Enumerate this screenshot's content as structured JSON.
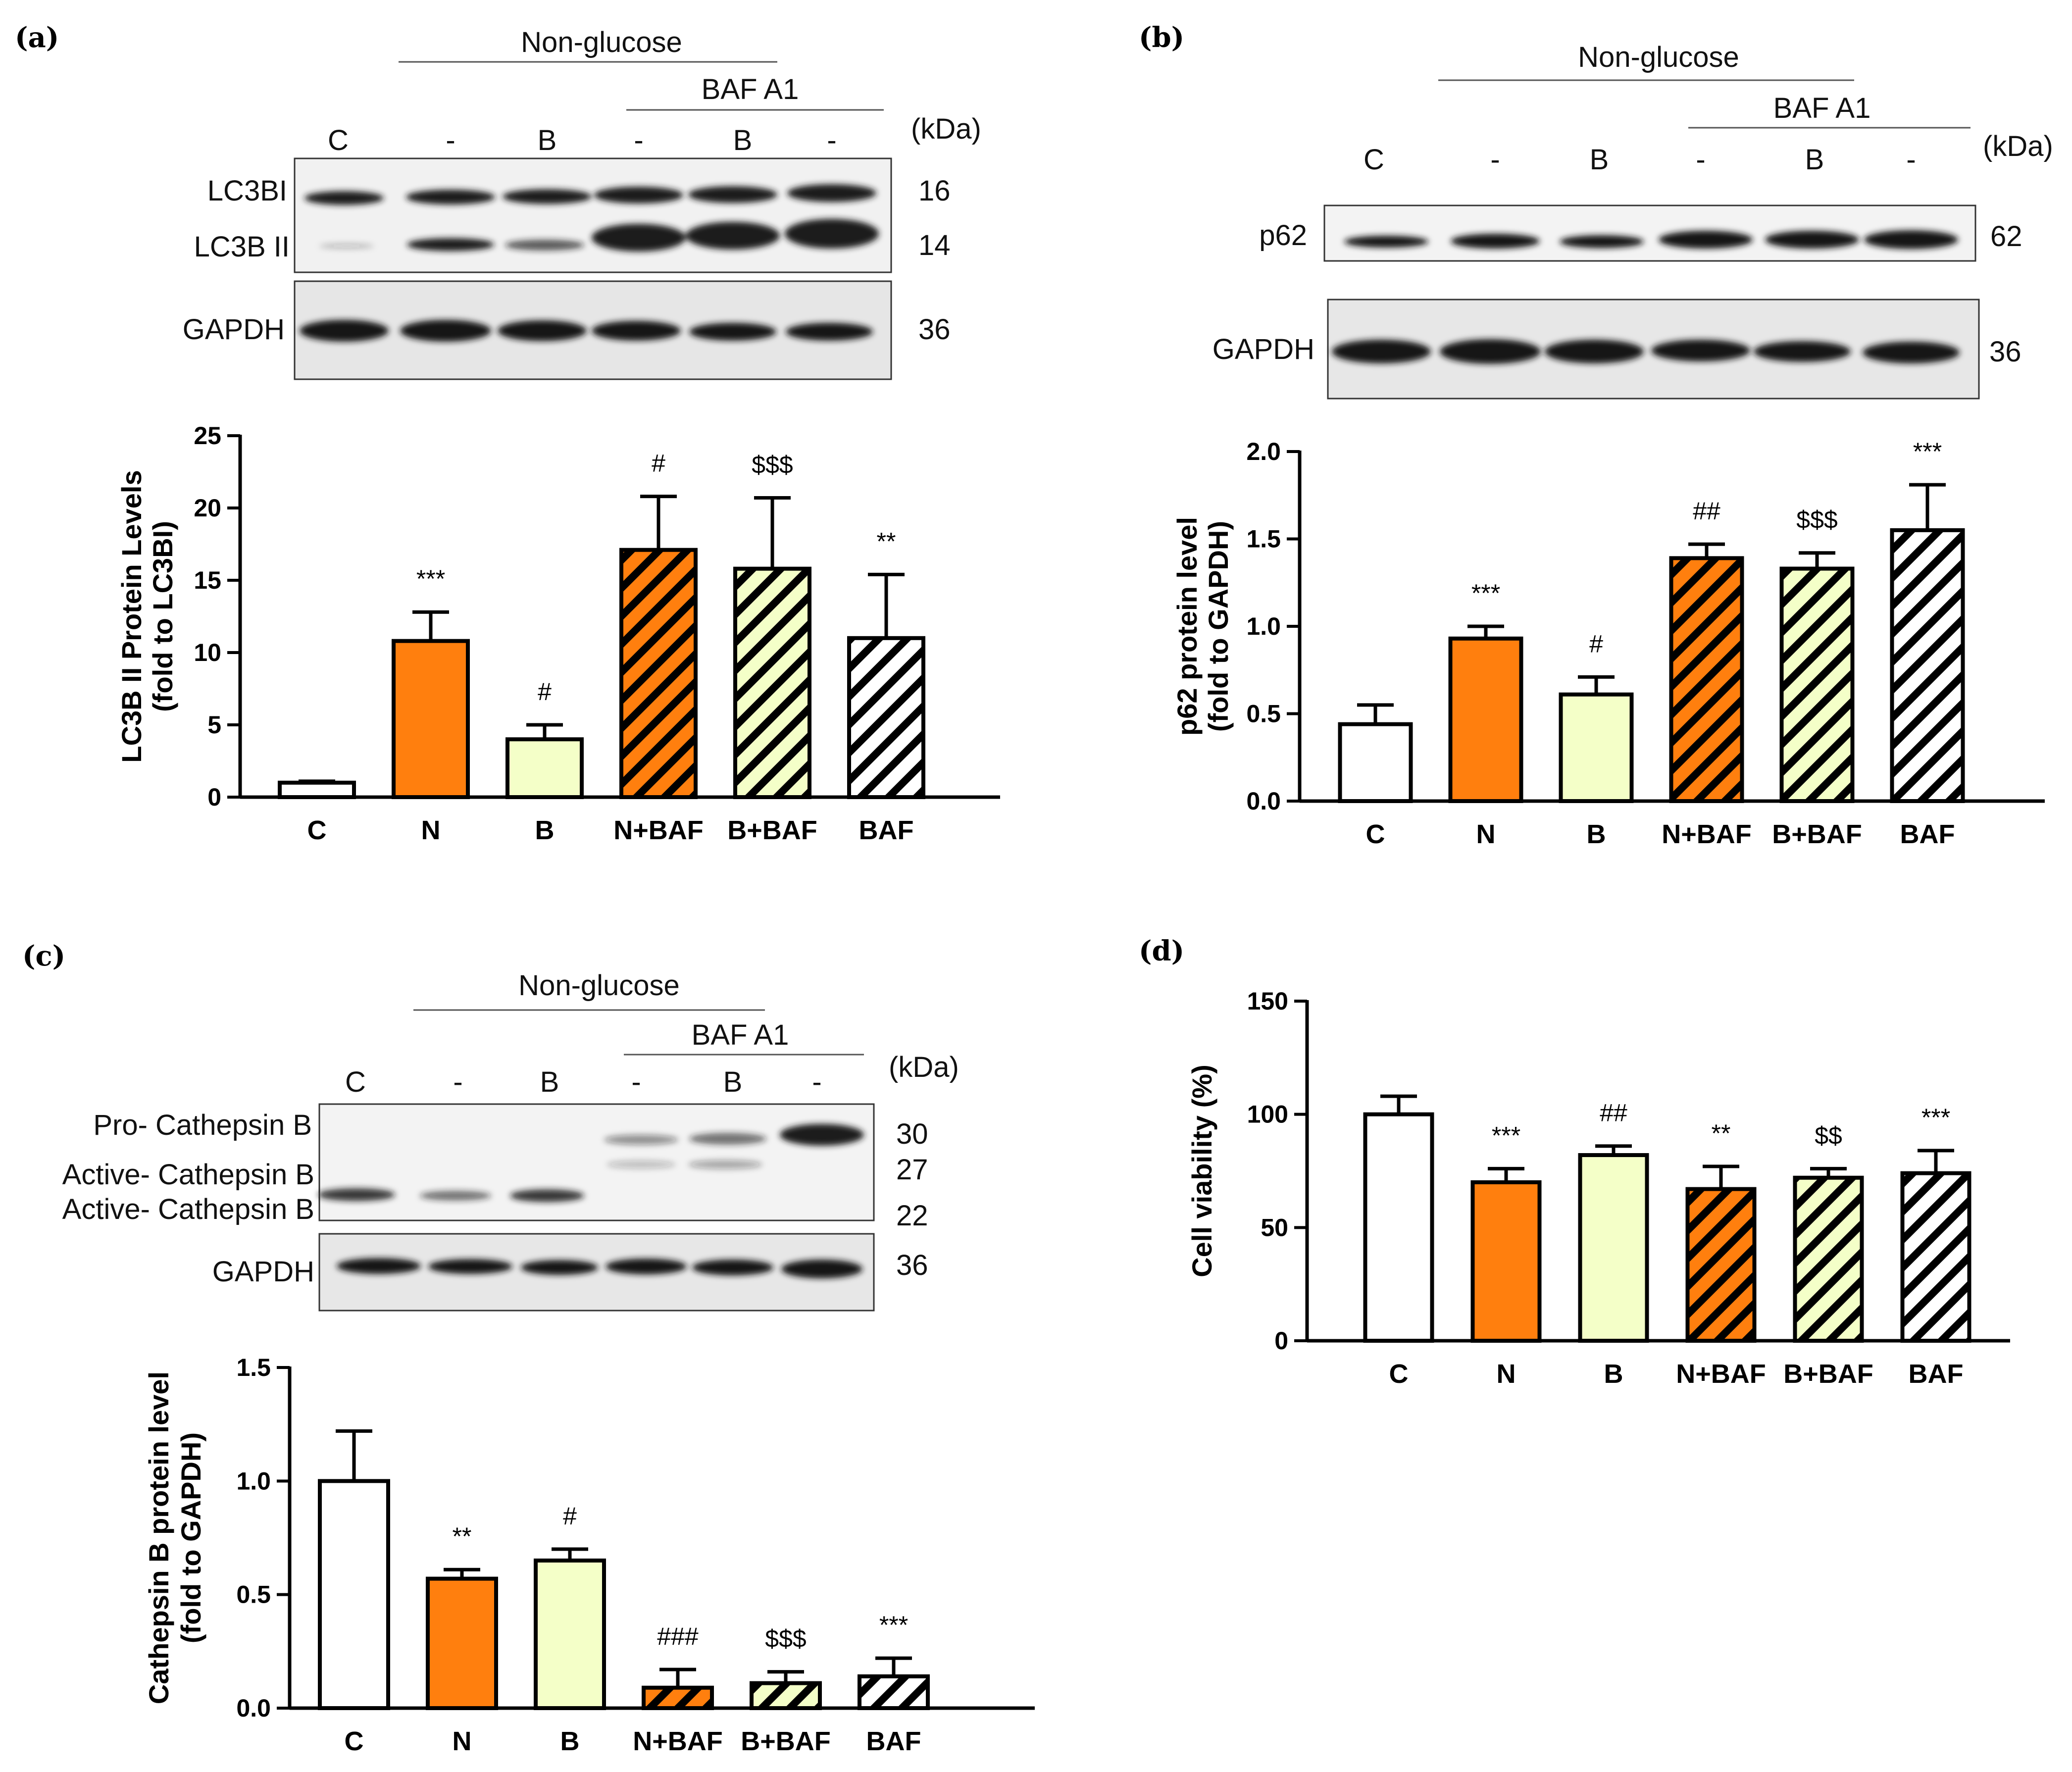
{
  "colors": {
    "control": "#ffffff",
    "orange": "#ff7f0e",
    "cream": "#f4ffc8",
    "black": "#000000"
  },
  "panels": [
    {
      "label": "(a)",
      "blot": {
        "group_label": "Non-glucose",
        "subgroup_label": "BAF A1",
        "kda_label": "(kDa)",
        "lanes": [
          "C",
          "-",
          "B",
          "-",
          "B",
          "-"
        ],
        "rows": [
          {
            "names": [
              "LC3BI",
              "LC3B II"
            ],
            "kda": [
              "16",
              "14"
            ]
          },
          {
            "names": [
              "GAPDH"
            ],
            "kda": [
              "36"
            ]
          }
        ]
      }
    },
    {
      "label": "(b)",
      "blot": {
        "group_label": "Non-glucose",
        "subgroup_label": "BAF A1",
        "kda_label": "(kDa)",
        "lanes": [
          "C",
          "-",
          "B",
          "-",
          "B",
          "-"
        ],
        "rows": [
          {
            "names": [
              "p62"
            ],
            "kda": [
              "62"
            ]
          },
          {
            "names": [
              "GAPDH"
            ],
            "kda": [
              "36"
            ]
          }
        ]
      }
    },
    {
      "label": "(c)",
      "blot": {
        "group_label": "Non-glucose",
        "subgroup_label": "BAF A1",
        "kda_label": "(kDa)",
        "lanes": [
          "C",
          "-",
          "B",
          "-",
          "B",
          "-"
        ],
        "rows": [
          {
            "names": [
              "Pro- Cathepsin B",
              "Active- Cathepsin B",
              "Active- Cathepsin B"
            ],
            "kda": [
              "30",
              "27",
              "22"
            ]
          },
          {
            "names": [
              "GAPDH"
            ],
            "kda": [
              "36"
            ]
          }
        ]
      }
    },
    {
      "label": "(d)"
    }
  ],
  "chart_data": [
    {
      "type": "bar",
      "panel": "(a)",
      "ylabel": [
        "LC3B II Protein Levels",
        "(fold to LC3BI)"
      ],
      "xlabel": "",
      "categories": [
        "C",
        "N",
        "B",
        "N+BAF",
        "B+BAF",
        "BAF"
      ],
      "values": [
        1.0,
        10.8,
        4.0,
        17.1,
        15.8,
        11.0
      ],
      "errors": [
        0.1,
        2.0,
        1.0,
        3.7,
        4.9,
        4.4
      ],
      "significance": [
        "",
        "***",
        "#",
        "#",
        "$$$",
        "**"
      ],
      "ylim": [
        0,
        25
      ],
      "yticks": [
        0,
        5,
        10,
        15,
        20,
        25
      ],
      "ytick_labels": [
        "0",
        "5",
        "10",
        "15",
        "20",
        "25"
      ]
    },
    {
      "type": "bar",
      "panel": "(b)",
      "ylabel": [
        "p62 protein level",
        "(fold to GAPDH)"
      ],
      "xlabel": "",
      "categories": [
        "C",
        "N",
        "B",
        "N+BAF",
        "B+BAF",
        "BAF"
      ],
      "values": [
        0.44,
        0.93,
        0.61,
        1.39,
        1.33,
        1.55
      ],
      "errors": [
        0.11,
        0.07,
        0.1,
        0.08,
        0.09,
        0.26
      ],
      "significance": [
        "",
        "***",
        "#",
        "##",
        "$$$",
        "***"
      ],
      "ylim": [
        0,
        2.0
      ],
      "yticks": [
        0,
        0.5,
        1.0,
        1.5,
        2.0
      ],
      "ytick_labels": [
        "0.0",
        "0.5",
        "1.0",
        "1.5",
        "2.0"
      ]
    },
    {
      "type": "bar",
      "panel": "(c)",
      "ylabel": [
        "Cathepsin B protein level",
        "(fold to GAPDH)"
      ],
      "xlabel": "",
      "categories": [
        "C",
        "N",
        "B",
        "N+BAF",
        "B+BAF",
        "BAF"
      ],
      "values": [
        1.0,
        0.57,
        0.65,
        0.09,
        0.11,
        0.14
      ],
      "errors": [
        0.22,
        0.04,
        0.05,
        0.08,
        0.05,
        0.08
      ],
      "significance": [
        "",
        "**",
        "#",
        "###",
        "$$$",
        "***"
      ],
      "ylim": [
        0,
        1.5
      ],
      "yticks": [
        0,
        0.5,
        1.0,
        1.5
      ],
      "ytick_labels": [
        "0.0",
        "0.5",
        "1.0",
        "1.5"
      ]
    },
    {
      "type": "bar",
      "panel": "(d)",
      "ylabel": [
        "Cell viability (%)"
      ],
      "xlabel": "",
      "categories": [
        "C",
        "N",
        "B",
        "N+BAF",
        "B+BAF",
        "BAF"
      ],
      "values": [
        100,
        70,
        82,
        67,
        72,
        74
      ],
      "errors": [
        8,
        6,
        4,
        10,
        4,
        10
      ],
      "significance": [
        "",
        "***",
        "##",
        "**",
        "$$",
        "***"
      ],
      "ylim": [
        0,
        150
      ],
      "yticks": [
        0,
        50,
        100,
        150
      ],
      "ytick_labels": [
        "0",
        "50",
        "100",
        "150"
      ]
    }
  ]
}
